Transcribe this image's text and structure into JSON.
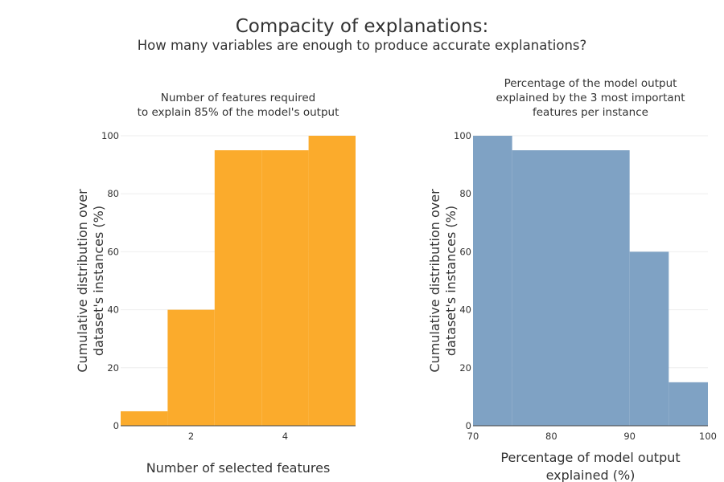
{
  "figure": {
    "title": "Compacity of explanations:",
    "subtitle": "How many variables are enough to produce accurate explanations?"
  },
  "chart_data": [
    {
      "type": "bar",
      "title_lines": [
        "Number of features required",
        "to explain 85% of the model's output"
      ],
      "xlabel_lines": [
        "Number of selected features"
      ],
      "ylabel_lines": [
        "Cumulative distribution over",
        "dataset's instances (%)"
      ],
      "bin_edges": [
        0.5,
        1.5,
        2.5,
        3.5,
        4.5,
        5.5
      ],
      "values": [
        5,
        40,
        95,
        95,
        100
      ],
      "xlim": [
        0.5,
        5.5
      ],
      "ylim": [
        0,
        100
      ],
      "xticks": [
        2,
        4
      ],
      "yticks": [
        0,
        20,
        40,
        60,
        80,
        100
      ],
      "color": "#FBAB2C",
      "grid": true
    },
    {
      "type": "bar",
      "title_lines": [
        "Percentage of the model output",
        "explained by the 3 most important",
        "features per instance"
      ],
      "xlabel_lines": [
        "Percentage of model output",
        "explained (%)"
      ],
      "ylabel_lines": [
        "Cumulative distribution over",
        "dataset's instances (%)"
      ],
      "bin_edges": [
        70,
        75,
        90,
        95,
        100
      ],
      "values": [
        100,
        95,
        60,
        15
      ],
      "xlim": [
        70,
        100
      ],
      "ylim": [
        0,
        100
      ],
      "xticks": [
        70,
        80,
        90,
        100
      ],
      "yticks": [
        0,
        20,
        40,
        60,
        80,
        100
      ],
      "color": "#7FA2C4",
      "grid": true
    }
  ]
}
